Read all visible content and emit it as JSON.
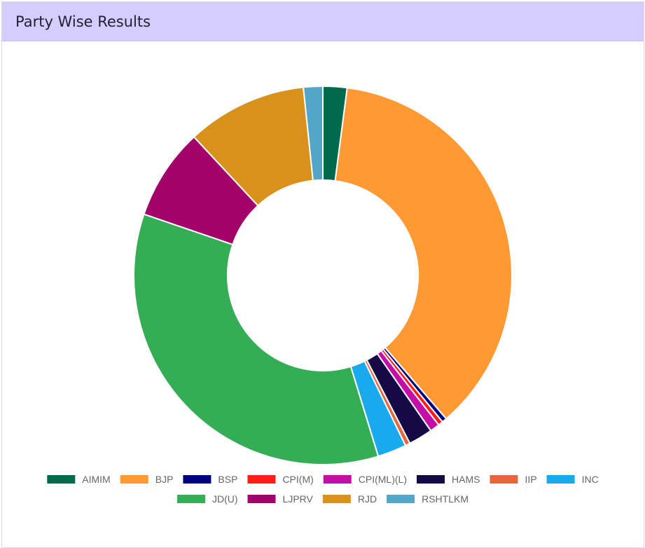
{
  "card": {
    "title": "Party Wise Results"
  },
  "chart_data": {
    "type": "doughnut",
    "title": "",
    "legend_position": "bottom",
    "series": [
      {
        "name": "AIMIM",
        "value": 5,
        "color": "#006a4e"
      },
      {
        "name": "BJP",
        "value": 89,
        "color": "#ff9933"
      },
      {
        "name": "BSP",
        "value": 1,
        "color": "#000080"
      },
      {
        "name": "CPI(M)",
        "value": 1,
        "color": "#ff1d15"
      },
      {
        "name": "CPI(ML)(L)",
        "value": 2,
        "color": "#c40ea8"
      },
      {
        "name": "HAMS",
        "value": 5,
        "color": "#150a45"
      },
      {
        "name": "IIP",
        "value": 1,
        "color": "#e8663d"
      },
      {
        "name": "INC",
        "value": 6,
        "color": "#19aaed"
      },
      {
        "name": "JD(U)",
        "value": 85,
        "color": "#35ad55"
      },
      {
        "name": "LJPRV",
        "value": 19,
        "color": "#a3026b"
      },
      {
        "name": "RJD",
        "value": 25,
        "color": "#d8911a"
      },
      {
        "name": "RSHTLKM",
        "value": 4,
        "color": "#52a6c7"
      }
    ]
  }
}
